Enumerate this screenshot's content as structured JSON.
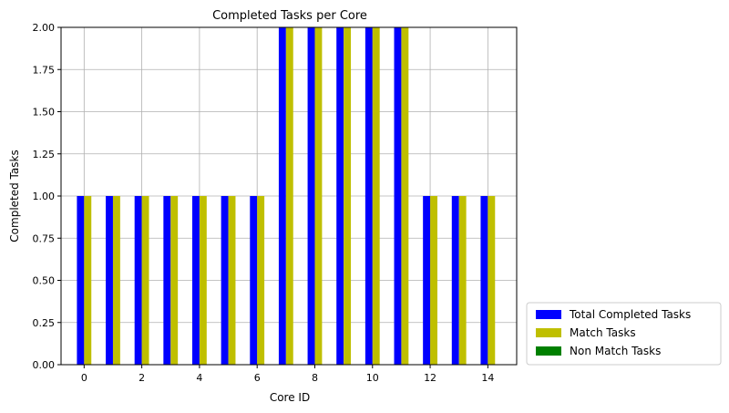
{
  "chart_data": {
    "type": "bar",
    "title": "Completed Tasks per Core",
    "xlabel": "Core ID",
    "ylabel": "Completed Tasks",
    "categories": [
      0,
      1,
      2,
      3,
      4,
      5,
      6,
      7,
      8,
      9,
      10,
      11,
      12,
      13,
      14
    ],
    "series": [
      {
        "name": "Total Completed Tasks",
        "color": "#0000ff",
        "values": [
          1,
          1,
          1,
          1,
          1,
          1,
          1,
          2,
          2,
          2,
          2,
          2,
          1,
          1,
          1
        ]
      },
      {
        "name": "Match Tasks",
        "color": "#bfbf00",
        "values": [
          1,
          1,
          1,
          1,
          1,
          1,
          1,
          2,
          2,
          2,
          2,
          2,
          1,
          1,
          1
        ]
      },
      {
        "name": "Non Match Tasks",
        "color": "#008000",
        "values": [
          0,
          0,
          0,
          0,
          0,
          0,
          0,
          0,
          0,
          0,
          0,
          0,
          0,
          0,
          0
        ]
      }
    ],
    "xticks": [
      0,
      2,
      4,
      6,
      8,
      10,
      12,
      14
    ],
    "xtick_labels": [
      "0",
      "2",
      "4",
      "6",
      "8",
      "10",
      "12",
      "14"
    ],
    "yticks": [
      0,
      0.25,
      0.5,
      0.75,
      1.0,
      1.25,
      1.5,
      1.75,
      2.0
    ],
    "ytick_labels": [
      "0.00",
      "0.25",
      "0.50",
      "0.75",
      "1.00",
      "1.25",
      "1.50",
      "1.75",
      "2.00"
    ],
    "xlim": [
      -0.8,
      15.0
    ],
    "ylim": [
      0,
      2.0
    ],
    "grid": true,
    "legend_position": "outside-lower-right"
  }
}
